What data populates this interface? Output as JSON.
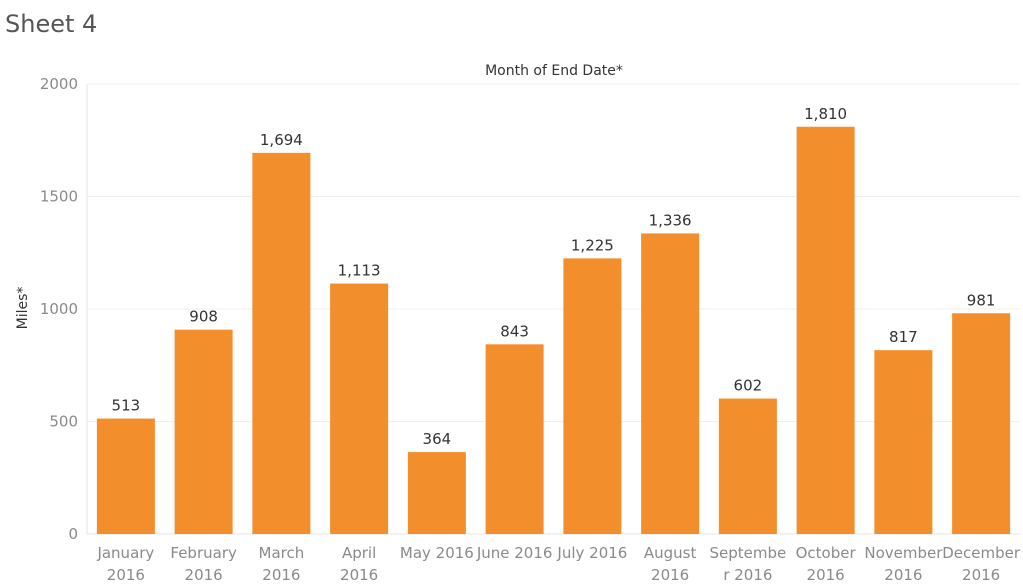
{
  "sheet": {
    "title": "Sheet 4"
  },
  "chart_data": {
    "type": "bar",
    "title": "Month of End Date*",
    "xlabel": "",
    "ylabel": "Miles*",
    "categories": [
      [
        "January",
        "2016"
      ],
      [
        "February",
        "2016"
      ],
      [
        "March",
        "2016"
      ],
      [
        "April",
        "2016"
      ],
      [
        "May 2016"
      ],
      [
        "June 2016"
      ],
      [
        "July 2016"
      ],
      [
        "August",
        "2016"
      ],
      [
        "Septembe",
        "r 2016"
      ],
      [
        "October",
        "2016"
      ],
      [
        "November",
        "2016"
      ],
      [
        "December",
        "2016"
      ]
    ],
    "values": [
      513,
      908,
      1694,
      1113,
      364,
      843,
      1225,
      1336,
      602,
      1810,
      817,
      981
    ],
    "data_labels": [
      "513",
      "908",
      "1,694",
      "1,113",
      "364",
      "843",
      "1,225",
      "1,336",
      "602",
      "1,810",
      "817",
      "981"
    ],
    "yticks": [
      0,
      500,
      1000,
      1500,
      2000
    ],
    "ylim": [
      0,
      2000
    ],
    "bar_color": "#f28e2b",
    "grid": true,
    "legend": "none"
  }
}
